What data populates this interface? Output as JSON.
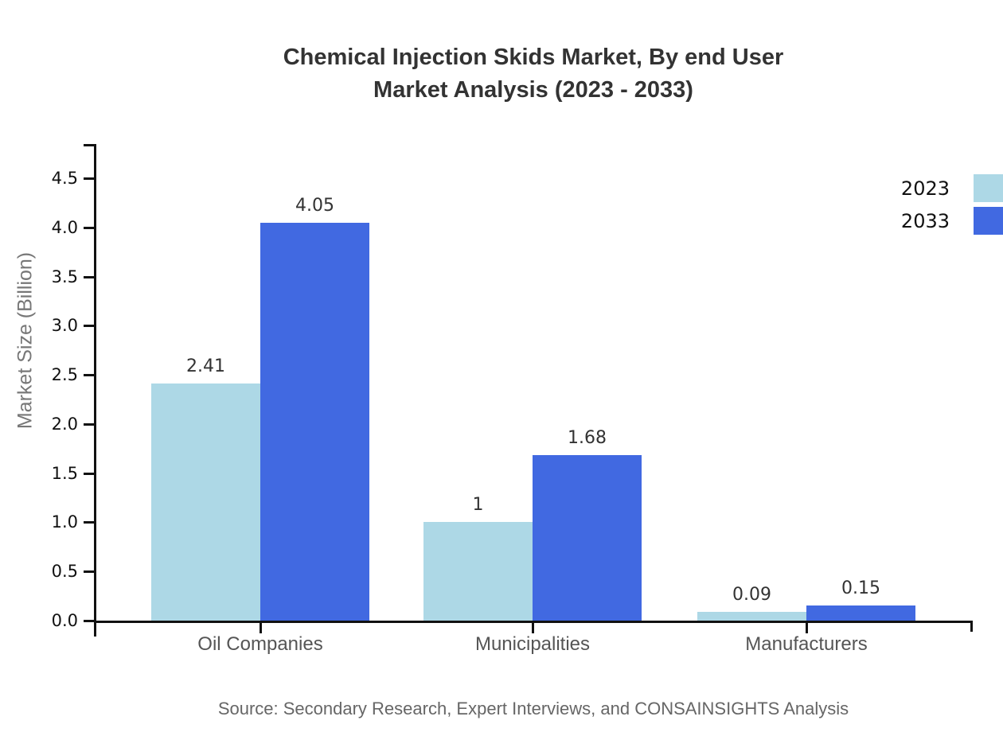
{
  "title": {
    "line1": "Chemical Injection Skids Market, By end User",
    "line2": "Market Analysis (2023 - 2033)"
  },
  "legend": {
    "items": [
      {
        "label": "2023",
        "color": "#ADD8E6"
      },
      {
        "label": "2033",
        "color": "#4169E1"
      }
    ],
    "position": "top-right"
  },
  "source_note": "Source: Secondary Research, Expert Interviews, and CONSAINSIGHTS Analysis",
  "chart_data": {
    "type": "bar",
    "title": "Chemical Injection Skids Market, By end User Market Analysis (2023 - 2033)",
    "categories": [
      "Oil Companies",
      "Municipalities",
      "Manufacturers"
    ],
    "series": [
      {
        "name": "2023",
        "color": "#ADD8E6",
        "values": [
          2.41,
          1,
          0.09
        ],
        "value_labels": [
          "2.41",
          "1",
          "0.09"
        ]
      },
      {
        "name": "2033",
        "color": "#4169E1",
        "values": [
          4.05,
          1.68,
          0.15
        ],
        "value_labels": [
          "4.05",
          "1.68",
          "0.15"
        ]
      }
    ],
    "xlabel": "",
    "ylabel": "Market Size (Billion)",
    "ylim": [
      0,
      4.5
    ],
    "ytick_labels": [
      "0.0",
      "0.5",
      "1.0",
      "1.5",
      "2.0",
      "2.5",
      "3.0",
      "3.5",
      "4.0",
      "4.5"
    ],
    "grid": false,
    "legend_position": "top-right",
    "axis_color": "#111111",
    "text_colors": {
      "title": "#333333",
      "tick_labels": "#111111",
      "category_labels": "#555555",
      "value_labels": "#333333",
      "y_axis_title": "#777777",
      "source": "#666666"
    }
  }
}
